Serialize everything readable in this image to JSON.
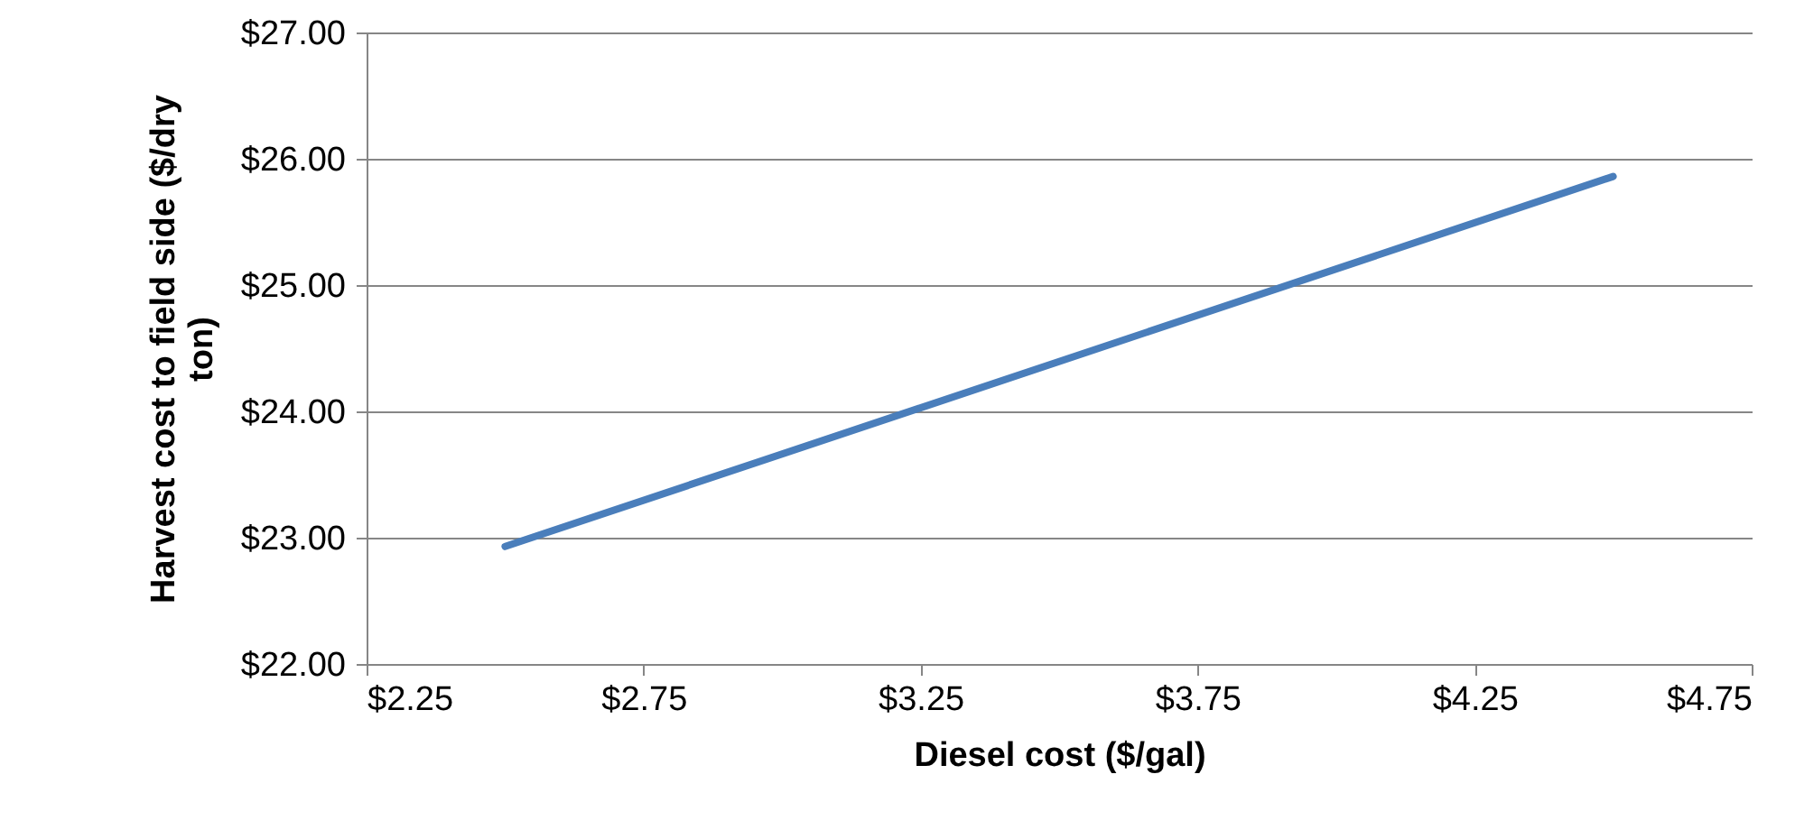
{
  "chart_data": {
    "type": "line",
    "xlabel": "Diesel cost ($/gal)",
    "ylabel": "Harvest cost to field side ($/dry ton)",
    "x": [
      2.5,
      4.5
    ],
    "series": [
      {
        "color": "#4a7ebb",
        "values": [
          22.93,
          25.86
        ]
      }
    ],
    "xlim": [
      2.25,
      4.75
    ],
    "xticks": [
      {
        "value": 2.25,
        "label": "$2.25"
      },
      {
        "value": 2.75,
        "label": "$2.75"
      },
      {
        "value": 3.25,
        "label": "$3.25"
      },
      {
        "value": 3.75,
        "label": "$3.75"
      },
      {
        "value": 4.25,
        "label": "$4.25"
      },
      {
        "value": 4.75,
        "label": "$4.75"
      }
    ],
    "ylim": [
      22,
      27
    ],
    "yticks": [
      {
        "value": 22,
        "label": "$22.00"
      },
      {
        "value": 23,
        "label": "$23.00"
      },
      {
        "value": 24,
        "label": "$24.00"
      },
      {
        "value": 25,
        "label": "$25.00"
      },
      {
        "value": 26,
        "label": "$26.00"
      },
      {
        "value": 27,
        "label": "$27.00"
      }
    ],
    "grid": "y",
    "marker": "none",
    "line_style": "solid"
  }
}
